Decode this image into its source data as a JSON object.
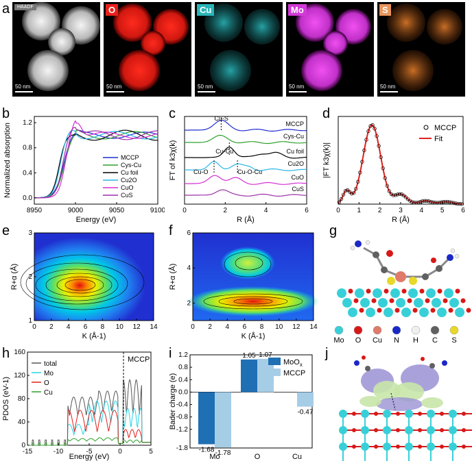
{
  "panel_labels": {
    "a": "a",
    "b": "b",
    "c": "c",
    "d": "d",
    "e": "e",
    "f": "f",
    "g": "g",
    "h": "h",
    "i": "i",
    "j": "j"
  },
  "panel_a": {
    "scale_bar": "50 nm",
    "maps": [
      {
        "label": "HAADF",
        "color": "#c8c8c8"
      },
      {
        "label": "O",
        "color": "#e8201c"
      },
      {
        "label": "Cu",
        "color": "#2ab5b8"
      },
      {
        "label": "Mo",
        "color": "#d23ad6"
      },
      {
        "label": "S",
        "color": "#e07b2a"
      }
    ]
  },
  "panel_g": {
    "legend": [
      {
        "label": "Mo",
        "color": "#38d0d8"
      },
      {
        "label": "O",
        "color": "#d81818"
      },
      {
        "label": "Cu",
        "color": "#e07a6a"
      },
      {
        "label": "N",
        "color": "#1a28c8"
      },
      {
        "label": "H",
        "color": "#f0f0f0"
      },
      {
        "label": "C",
        "color": "#606060"
      },
      {
        "label": "S",
        "color": "#e8d828"
      }
    ]
  },
  "chart_data": [
    {
      "id": "b",
      "type": "line",
      "xlabel": "Energy (eV)",
      "ylabel": "Normalized absorption",
      "xlim": [
        8950,
        9100
      ],
      "ylim": [
        -0.1,
        1.3
      ],
      "xticks": [
        8950,
        9000,
        9050,
        9100
      ],
      "yticks": [
        0.0,
        0.4,
        0.8,
        1.2
      ],
      "legend_position": "bottom-right",
      "series": [
        {
          "name": "MCCP",
          "color": "#1f2bd1"
        },
        {
          "name": "Cys-Cu",
          "color": "#2ca02c"
        },
        {
          "name": "Cu foil",
          "color": "#000000"
        },
        {
          "name": "Cu2O",
          "color": "#27b6e6"
        },
        {
          "name": "CuO",
          "color": "#d62ed6"
        },
        {
          "name": "CuS",
          "color": "#9b2fa8"
        }
      ]
    },
    {
      "id": "c",
      "type": "line",
      "xlabel": "R (Å)",
      "ylabel": "FT of k3χ(k)",
      "xlim": [
        0,
        6
      ],
      "xticks": [
        0,
        2,
        4,
        6
      ],
      "annotations": [
        "Cu-S",
        "Cu-Cu",
        "Cu-O",
        "Cu-O-Cu"
      ],
      "series": [
        {
          "name": "MCCP",
          "color": "#1f2bd1"
        },
        {
          "name": "Cys-Cu",
          "color": "#2ca02c"
        },
        {
          "name": "Cu foil",
          "color": "#000000"
        },
        {
          "name": "Cu2O",
          "color": "#27b6e6"
        },
        {
          "name": "CuO",
          "color": "#d62ed6"
        },
        {
          "name": "CuS",
          "color": "#9b2fa8"
        }
      ]
    },
    {
      "id": "d",
      "type": "line",
      "xlabel": "R (Å)",
      "ylabel": "|FT k3χ(k)|",
      "xlim": [
        0,
        6
      ],
      "xticks": [
        0,
        1,
        2,
        3,
        4,
        5,
        6
      ],
      "legend_position": "top-right",
      "series": [
        {
          "name": "MCCP",
          "color": "#000000",
          "marker": "open-circle"
        },
        {
          "name": "Fit",
          "color": "#e0201c"
        }
      ]
    },
    {
      "id": "e",
      "type": "heatmap",
      "xlabel": "K (Å-1)",
      "ylabel": "R+α (Å)",
      "xlim": [
        0,
        14
      ],
      "ylim": [
        1,
        3
      ],
      "xticks": [
        0,
        2,
        4,
        6,
        8,
        10,
        12,
        14
      ],
      "yticks": [
        1,
        2,
        3
      ],
      "peak": {
        "k": 5.5,
        "r": 1.8
      }
    },
    {
      "id": "f",
      "type": "heatmap",
      "xlabel": "K (Å-1)",
      "ylabel": "R+α (Å)",
      "xlim": [
        0,
        14
      ],
      "ylim": [
        1,
        6
      ],
      "xticks": [
        0,
        2,
        4,
        6,
        8,
        10,
        12,
        14
      ],
      "yticks": [
        2,
        4,
        6
      ],
      "peaks": [
        {
          "k": 7,
          "r": 2.2
        },
        {
          "k": 7,
          "r": 4.3
        }
      ]
    },
    {
      "id": "h",
      "type": "line",
      "xlabel": "Energy (eV)",
      "ylabel": "PDOS (eV-1)",
      "xlim": [
        -15,
        5
      ],
      "ylim": [
        0,
        160
      ],
      "xticks": [
        -15,
        -10,
        -5,
        0,
        5
      ],
      "yticks": [
        0,
        40,
        80,
        120,
        160
      ],
      "annotation": "MCCP",
      "legend_position": "top-left",
      "series": [
        {
          "name": "total",
          "color": "#555555"
        },
        {
          "name": "Mo",
          "color": "#27d4e6"
        },
        {
          "name": "O",
          "color": "#e0201c"
        },
        {
          "name": "Cu",
          "color": "#2ca02c"
        }
      ]
    },
    {
      "id": "i",
      "type": "bar",
      "ylabel": "Bader charge (e)",
      "categories": [
        "Mo",
        "O",
        "Cu"
      ],
      "ylim": [
        -1.8,
        1.2
      ],
      "yticks": [
        1.2,
        0.8,
        0.4,
        0.0,
        -0.4,
        -0.8,
        -1.2,
        -1.8
      ],
      "legend_position": "top-right",
      "series": [
        {
          "name": "MoOx",
          "color": "#1f6fb4",
          "values": [
            -1.68,
            1.05,
            null
          ]
        },
        {
          "name": "MCCP",
          "color": "#a6cde6",
          "values": [
            -1.78,
            1.07,
            -0.47
          ]
        }
      ],
      "labels": {
        "mo_moox": "-1.68",
        "mo_mccp": "-1.78",
        "o_moox": "1.05",
        "o_mccp": "1.07",
        "cu_mccp": "-0.47"
      }
    }
  ]
}
